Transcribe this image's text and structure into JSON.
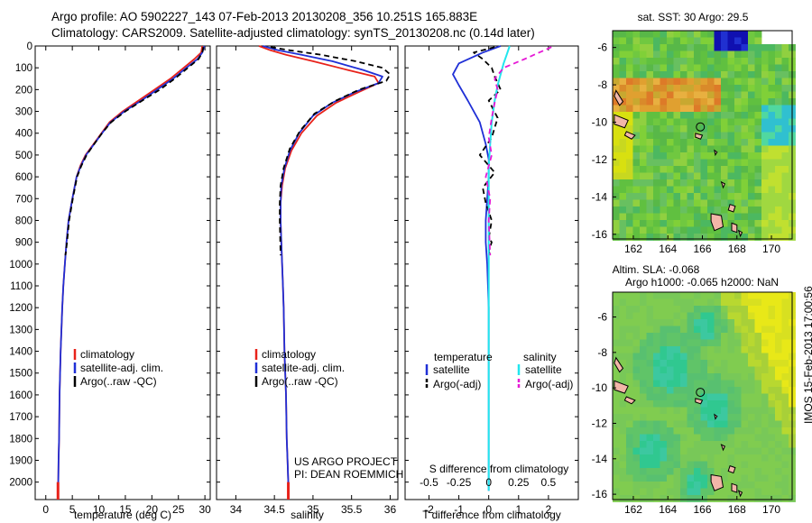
{
  "header": {
    "line1": "Argo profile: AO 5902227_143 07-Feb-2013 20130208_356 10.251S 165.883E",
    "line2": "Climatology: CARS2009. Satellite-adjusted climatology: synTS_20130208.nc (0.14d later)"
  },
  "colors": {
    "climatology": "#e8221a",
    "satellite": "#1f2fd6",
    "argo": "#000000",
    "satellite_s": "#22e6ee",
    "argo_s": "#e619d6"
  },
  "chart_data": [
    {
      "type": "line",
      "panel": "temperature",
      "xlabel": "temperature (deg C)",
      "ylabel": "",
      "xlim": [
        -2,
        31
      ],
      "ylim": [
        2080,
        0
      ],
      "xticks": [
        0,
        5,
        10,
        15,
        20,
        25,
        30
      ],
      "xtick_labels": [
        "0",
        "5",
        "10",
        "15",
        "20",
        "25",
        "30"
      ],
      "yticks": [
        0,
        100,
        200,
        300,
        400,
        500,
        600,
        700,
        800,
        900,
        1000,
        1100,
        1200,
        1300,
        1400,
        1500,
        1600,
        1700,
        1800,
        1900,
        2000
      ],
      "ytick_labels": [
        "0",
        "100",
        "200",
        "300",
        "400",
        "500",
        "600",
        "700",
        "800",
        "900",
        "1000",
        "1100",
        "1200",
        "1300",
        "1400",
        "1500",
        "1600",
        "1700",
        "1800",
        "1900",
        "2000"
      ],
      "legend": [
        "climatology",
        "satellite-adj. clim.",
        "Argo(..raw -QC)"
      ],
      "legend_position": "lower-center",
      "series": [
        {
          "name": "climatology",
          "x": [
            29.5,
            29.3,
            28.0,
            26.0,
            23.5,
            20.5,
            17.5,
            14.5,
            12.0,
            10.5,
            9.0,
            7.5,
            6.5,
            5.8,
            5.0,
            4.3,
            3.9,
            3.6,
            3.3,
            3.1,
            2.8,
            2.6,
            2.5,
            2.4,
            2.35,
            2.3
          ],
          "y": [
            0,
            30,
            60,
            100,
            150,
            200,
            250,
            300,
            350,
            400,
            450,
            500,
            550,
            600,
            700,
            800,
            900,
            1000,
            1100,
            1200,
            1400,
            1600,
            1800,
            1900,
            2000,
            2040
          ]
        },
        {
          "name": "satellite-adj. clim.",
          "x": [
            29.9,
            29.5,
            28.6,
            26.5,
            24.0,
            21.0,
            18.0,
            14.8,
            12.2,
            10.6,
            9.1,
            7.6,
            6.6,
            5.8,
            5.0,
            4.3,
            3.9,
            3.6,
            3.3,
            3.1,
            2.8,
            2.6,
            2.5,
            2.4,
            2.35,
            2.3
          ],
          "y": [
            0,
            30,
            60,
            100,
            150,
            200,
            250,
            300,
            350,
            400,
            450,
            500,
            550,
            600,
            700,
            800,
            900,
            1000,
            1100,
            1200,
            1400,
            1600,
            1800,
            1900,
            2000,
            2040
          ]
        },
        {
          "name": "Argo(..raw -QC)",
          "x": [
            29.7,
            29.5,
            28.8,
            26.8,
            24.3,
            21.5,
            18.2,
            15.0,
            12.3,
            10.6,
            9.1,
            7.7,
            6.7,
            5.9,
            5.1,
            4.4,
            4.0,
            3.7
          ],
          "y": [
            5,
            30,
            60,
            100,
            150,
            200,
            250,
            300,
            350,
            400,
            450,
            500,
            550,
            600,
            700,
            800,
            900,
            960
          ]
        }
      ]
    },
    {
      "type": "line",
      "panel": "salinity",
      "xlabel": "salinity",
      "xlim": [
        33.75,
        36.1
      ],
      "ylim": [
        2080,
        0
      ],
      "xticks": [
        34,
        34.5,
        35,
        35.5,
        36
      ],
      "xtick_labels": [
        "34",
        "34.5",
        "35",
        "35.5",
        "36"
      ],
      "legend": [
        "climatology",
        "satellite-adj. clim.",
        "Argo(..raw -QC)"
      ],
      "legend_position": "lower-center",
      "annotation": [
        "US ARGO PROJECT",
        "PI: DEAN ROEMMICH"
      ],
      "series": [
        {
          "name": "climatology",
          "x": [
            34.3,
            34.45,
            34.65,
            35.0,
            35.45,
            35.8,
            35.85,
            35.6,
            35.3,
            35.05,
            34.85,
            34.72,
            34.64,
            34.6,
            34.58,
            34.58,
            34.59,
            34.6,
            34.61,
            34.62,
            34.63,
            34.65,
            34.66,
            34.67,
            34.68,
            34.68
          ],
          "y": [
            0,
            20,
            40,
            70,
            110,
            140,
            170,
            210,
            260,
            320,
            400,
            480,
            560,
            640,
            720,
            800,
            900,
            1000,
            1100,
            1200,
            1400,
            1600,
            1800,
            1900,
            2000,
            2040
          ]
        },
        {
          "name": "satellite-adj. clim.",
          "x": [
            34.35,
            34.55,
            34.85,
            35.25,
            35.65,
            35.9,
            35.85,
            35.55,
            35.25,
            35.0,
            34.82,
            34.7,
            34.63,
            34.59,
            34.58,
            34.58,
            34.59,
            34.6,
            34.61,
            34.62,
            34.63,
            34.65,
            34.66,
            34.67,
            34.68,
            34.68
          ],
          "y": [
            0,
            20,
            40,
            70,
            110,
            140,
            170,
            210,
            260,
            320,
            400,
            480,
            560,
            640,
            720,
            800,
            900,
            1000,
            1100,
            1200,
            1400,
            1600,
            1800,
            1900,
            2000,
            2040
          ]
        },
        {
          "name": "Argo(..raw -QC)",
          "x": [
            34.45,
            34.7,
            35.1,
            35.55,
            35.9,
            36.0,
            35.95,
            35.6,
            35.3,
            35.02,
            34.83,
            34.7,
            34.62,
            34.58,
            34.57,
            34.57,
            34.58
          ],
          "y": [
            5,
            20,
            40,
            70,
            100,
            130,
            160,
            200,
            250,
            310,
            390,
            470,
            560,
            640,
            720,
            800,
            960
          ]
        }
      ]
    },
    {
      "type": "line",
      "panel": "difference",
      "xlabel": "T difference from climatology",
      "top_label": "S difference from climatology",
      "xlim": [
        -2.8,
        3.0
      ],
      "ylim": [
        2080,
        0
      ],
      "xticks": [
        -2,
        -1,
        0,
        1,
        2
      ],
      "xtick_labels": [
        "-2",
        "-1",
        "0",
        "1",
        "2"
      ],
      "top_ticks": [
        -0.5,
        -0.25,
        0,
        0.25,
        0.5
      ],
      "top_tick_labels": [
        "-0.5",
        "-0.25",
        "0",
        "0.25",
        "0.5"
      ],
      "legend_headers": [
        "temperature",
        "salinity"
      ],
      "legend": [
        "satellite",
        "Argo(-adj)",
        "satellite",
        "Argo(-adj)"
      ],
      "legend_position": "lower-center",
      "series": [
        {
          "name": "temperature satellite",
          "x": [
            0.4,
            -0.2,
            -1.0,
            -1.2,
            -1.0,
            -0.7,
            -0.3,
            -0.1,
            0.0,
            0.0,
            -0.05,
            -0.1,
            -0.1,
            -0.05,
            0.0,
            0.0,
            0.0
          ],
          "y": [
            0,
            30,
            80,
            130,
            180,
            250,
            350,
            450,
            520,
            600,
            700,
            800,
            900,
            1000,
            1200,
            1600,
            2040
          ]
        },
        {
          "name": "temperature Argo(-adj)",
          "x": [
            0.2,
            -0.5,
            -0.2,
            0.1,
            0.2,
            0.4,
            0.0,
            0.3,
            0.1,
            -0.3,
            0.2,
            -0.2,
            -0.1,
            0.1,
            0.0,
            0.1,
            0.0,
            0.05
          ],
          "y": [
            5,
            30,
            60,
            100,
            140,
            200,
            250,
            330,
            420,
            500,
            580,
            650,
            720,
            800,
            880,
            900,
            940,
            960
          ]
        },
        {
          "name": "salinity satellite",
          "x": [
            0.7,
            0.6,
            0.5,
            0.4,
            0.3,
            0.2,
            0.1,
            0.05,
            0.0,
            0.0,
            0.0,
            0.0,
            0.0
          ],
          "y": [
            0,
            40,
            80,
            130,
            180,
            250,
            350,
            450,
            550,
            700,
            1000,
            1500,
            2040
          ]
        },
        {
          "name": "salinity Argo(-adj)",
          "x": [
            2.1,
            1.2,
            0.5,
            0.2,
            0.3,
            0.2,
            0.1,
            0.0,
            0.1,
            -0.1,
            0.05,
            0.0,
            0.05
          ],
          "y": [
            5,
            60,
            100,
            150,
            200,
            260,
            330,
            420,
            500,
            600,
            700,
            800,
            960
          ]
        }
      ]
    }
  ],
  "sst_map": {
    "title": "sat. SST: 30  Argo: 29.5",
    "xticks": [
      "162",
      "164",
      "166",
      "168",
      "170"
    ],
    "yticks": [
      "-6",
      "-8",
      "-10",
      "-12",
      "-14",
      "-16"
    ]
  },
  "sla_map": {
    "title_line1": "Altim. SLA: -0.068",
    "title_line2": "Argo h1000: -0.065  h2000: NaN",
    "xticks": [
      "162",
      "164",
      "166",
      "168",
      "170"
    ],
    "yticks": [
      "-6",
      "-8",
      "-10",
      "-12",
      "-14",
      "-16"
    ]
  },
  "footer": {
    "stamp": "IMOS 15-Feb-2013 17:00:56"
  }
}
